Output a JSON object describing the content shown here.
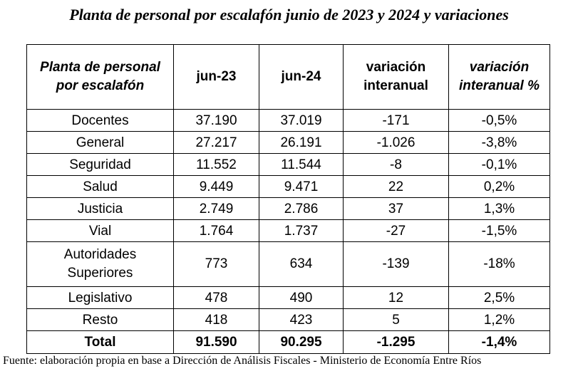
{
  "title": "Planta de personal por escalafón junio de 2023 y 2024 y variaciones",
  "table": {
    "headers": [
      "Planta de personal por escalafón",
      "jun-23",
      "jun-24",
      "variación interanual",
      "variación interanual %"
    ],
    "rows": [
      [
        "Docentes",
        "37.190",
        "37.019",
        "-171",
        "-0,5%"
      ],
      [
        "General",
        "27.217",
        "26.191",
        "-1.026",
        "-3,8%"
      ],
      [
        "Seguridad",
        "11.552",
        "11.544",
        "-8",
        "-0,1%"
      ],
      [
        "Salud",
        "9.449",
        "9.471",
        "22",
        "0,2%"
      ],
      [
        "Justicia",
        "2.749",
        "2.786",
        "37",
        "1,3%"
      ],
      [
        "Vial",
        "1.764",
        "1.737",
        "-27",
        "-1,5%"
      ],
      [
        "Autoridades Superiores",
        "773",
        "634",
        "-139",
        "-18%"
      ],
      [
        "Legislativo",
        "478",
        "490",
        "12",
        "2,5%"
      ],
      [
        "Resto",
        "418",
        "423",
        "5",
        "1,2%"
      ]
    ],
    "total": [
      "Total",
      "91.590",
      "90.295",
      "-1.295",
      "-1,4%"
    ]
  },
  "source": "Fuente: elaboración propia en base a Dirección de Análisis Fiscales - Ministerio de Economía Entre Ríos"
}
